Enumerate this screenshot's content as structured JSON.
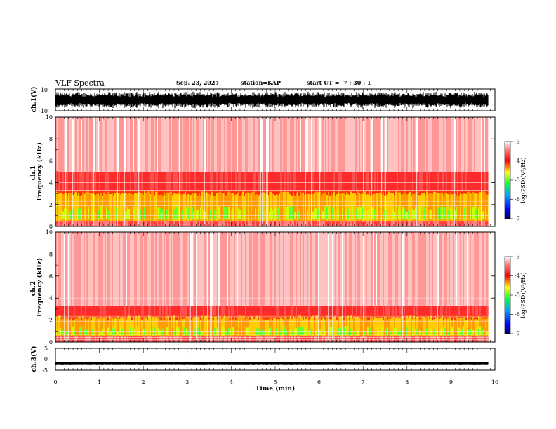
{
  "header": {
    "title": "VLF Spectra",
    "date": "Sep. 23, 2025",
    "station_label": "station=",
    "station": "KAP",
    "start_label": "start UT =",
    "start_time": "7 : 30 : 1"
  },
  "chart_data": [
    {
      "id": "ch1-waveform",
      "type": "line",
      "ylabel": "ch.1(V)",
      "ylim": [
        -10,
        10
      ],
      "ytick_labels": [
        "10",
        "-10"
      ],
      "amplitude_v": 8,
      "xlim_min": [
        0,
        10
      ],
      "data_end_min": 9.85
    },
    {
      "id": "ch1-spectrogram",
      "type": "heatmap",
      "ylabel": "ch.1\nFrequency (kHz)",
      "ylabel_line1": "ch.1",
      "ylabel_line2": "Frequency (kHz)",
      "ylim_khz": [
        0,
        10
      ],
      "ytick_labels": [
        "10",
        "8",
        "6",
        "4",
        "2",
        "0"
      ],
      "xlim_min": [
        0,
        10
      ],
      "data_end_min": 9.85,
      "intense_band_khz": [
        0.5,
        3.2
      ],
      "moderate_band_khz": [
        3.2,
        5.0
      ],
      "colorbar": {
        "label": "log(PSD)(V²/Hz)",
        "range": [
          -7,
          -3
        ],
        "tick_labels": [
          "-3",
          "-4",
          "-5",
          "-6",
          "-7"
        ]
      }
    },
    {
      "id": "ch2-spectrogram",
      "type": "heatmap",
      "ylabel": "ch.2\nFrequency (kHz)",
      "ylabel_line1": "ch.2",
      "ylabel_line2": "Frequency (kHz)",
      "ylim_khz": [
        0,
        10
      ],
      "ytick_labels": [
        "10",
        "8",
        "6",
        "4",
        "2",
        "0"
      ],
      "xlim_min": [
        0,
        10
      ],
      "data_end_min": 9.85,
      "intense_band_khz": [
        0.5,
        2.4
      ],
      "moderate_band_khz": [
        2.4,
        3.3
      ],
      "colorbar": {
        "label": "log(PSD)(V²/Hz)",
        "range": [
          -7,
          -3
        ],
        "tick_labels": [
          "-3",
          "-4",
          "-5",
          "-6",
          "-7"
        ]
      }
    },
    {
      "id": "ch3-waveform",
      "type": "line",
      "ylabel": "ch.3(V)",
      "ylim": [
        -5,
        5
      ],
      "ytick_labels": [
        "5",
        "0",
        "-5"
      ],
      "offset_v": -1.8,
      "amplitude_v": 0.6,
      "xlim_min": [
        0,
        10
      ],
      "data_end_min": 9.85
    }
  ],
  "xaxis": {
    "label": "Time (min)",
    "range": [
      0,
      10
    ],
    "tick_labels": [
      "0",
      "1",
      "2",
      "3",
      "4",
      "5",
      "6",
      "7",
      "8",
      "9",
      "10"
    ]
  }
}
